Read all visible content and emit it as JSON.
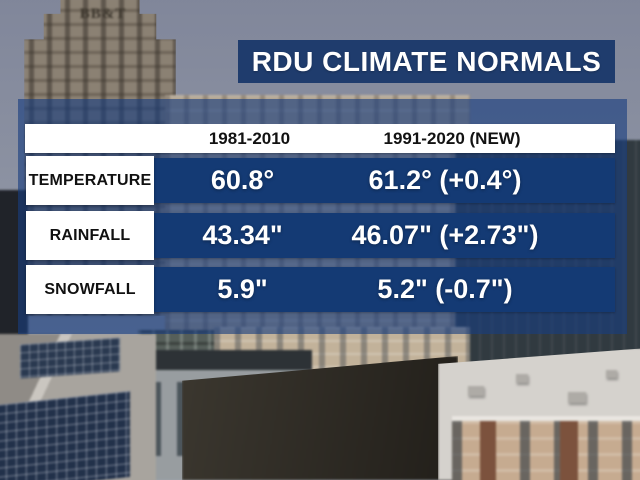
{
  "title": "RDU CLIMATE NORMALS",
  "background": {
    "bbt_sign": "BB&T"
  },
  "table": {
    "columns": [
      "1981-2010",
      "1991-2020 (NEW)"
    ],
    "rows": [
      {
        "label": "TEMPERATURE",
        "period_1981_2010": "60.8°",
        "period_1991_2020": "61.2° (+0.4°)"
      },
      {
        "label": "RAINFALL",
        "period_1981_2010": "43.34\"",
        "period_1991_2020": "46.07\" (+2.73\")"
      },
      {
        "label": "SNOWFALL",
        "period_1981_2010": "5.9\"",
        "period_1991_2020": "5.2\" (-0.7\")"
      }
    ]
  },
  "chart_data": {
    "type": "table",
    "title": "RDU CLIMATE NORMALS",
    "categories": [
      "TEMPERATURE",
      "RAINFALL",
      "SNOWFALL"
    ],
    "series": [
      {
        "name": "1981-2010",
        "values": [
          60.8,
          43.34,
          5.9
        ]
      },
      {
        "name": "1991-2020 (NEW)",
        "values": [
          61.2,
          46.07,
          5.2
        ]
      }
    ],
    "deltas": [
      0.4,
      2.73,
      -0.7
    ],
    "units": [
      "degrees",
      "inches",
      "inches"
    ]
  },
  "colors": {
    "title_bg": "#1f3c6d",
    "row_bg": "#143a74",
    "panel_tint": "rgba(24,62,128,0.62)",
    "header_text": "#121212",
    "value_text": "#ffffff"
  }
}
